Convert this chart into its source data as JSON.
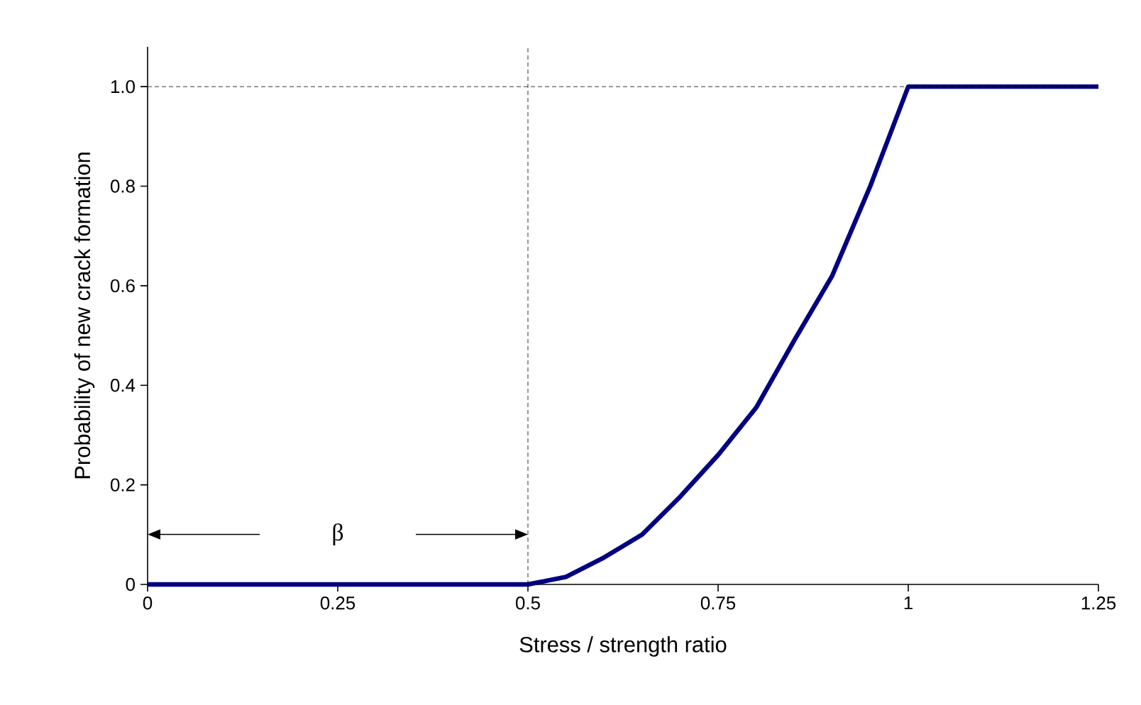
{
  "chart_data": {
    "type": "line",
    "xlabel": "Stress / strength ratio",
    "ylabel": "Probability of new crack formation",
    "x": [
      0,
      0.5,
      0.55,
      0.6,
      0.65,
      0.7,
      0.75,
      0.8,
      0.85,
      0.9,
      0.95,
      1,
      1.25
    ],
    "series": [
      {
        "color": "#000080",
        "values": [
          0,
          0,
          0.015,
          0.054,
          0.1,
          0.176,
          0.26,
          0.355,
          0.49,
          0.62,
          0.8,
          1,
          1
        ]
      }
    ],
    "xlim": [
      0,
      1.25
    ],
    "ylim": [
      0,
      1.08
    ],
    "xticks": [
      0,
      0.25,
      0.5,
      0.75,
      1,
      1.25
    ],
    "yticks": [
      0,
      0.2,
      0.4,
      0.6,
      0.8,
      {
        "value": 1,
        "label": "1.0"
      }
    ],
    "ref_lines": [
      {
        "axis": "y",
        "value": 1,
        "line_style": "dashed"
      },
      {
        "axis": "x",
        "value": 0.5,
        "line_style": "dashed"
      }
    ],
    "annotations": [
      "β"
    ],
    "grid": false,
    "marker": "none",
    "line_style": "solid"
  }
}
